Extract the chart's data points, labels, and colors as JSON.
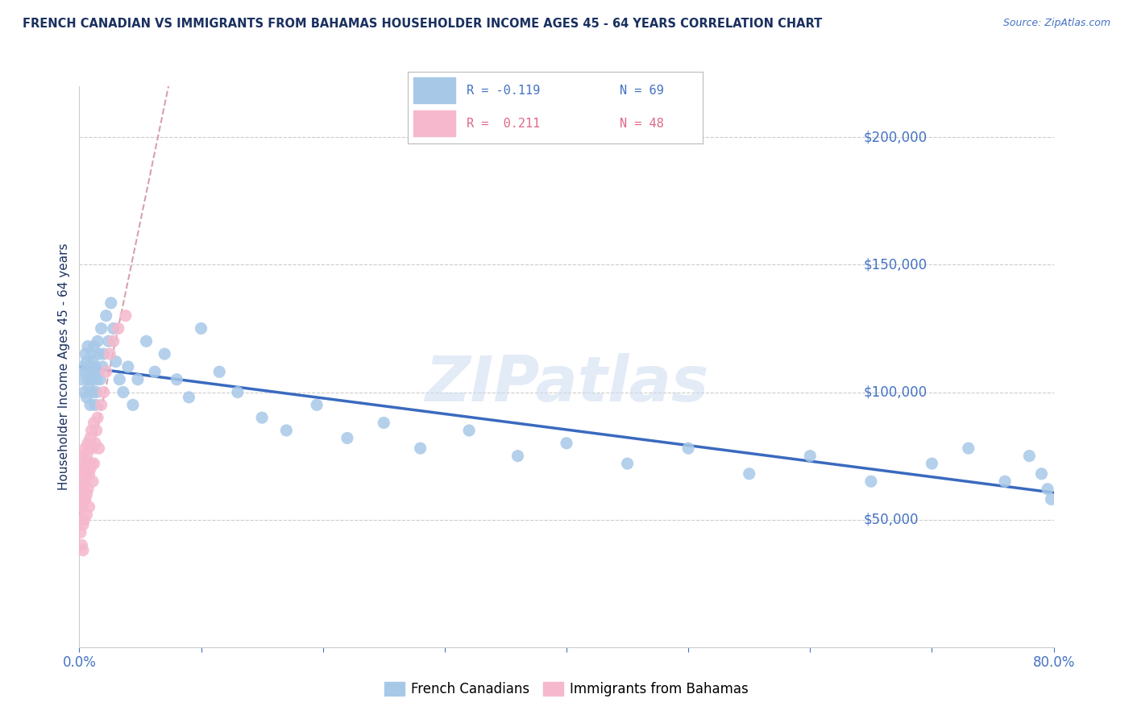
{
  "title": "FRENCH CANADIAN VS IMMIGRANTS FROM BAHAMAS HOUSEHOLDER INCOME AGES 45 - 64 YEARS CORRELATION CHART",
  "source": "Source: ZipAtlas.com",
  "ylabel": "Householder Income Ages 45 - 64 years",
  "xlim": [
    0.0,
    0.8
  ],
  "ylim": [
    0,
    220000
  ],
  "ytick_values": [
    50000,
    100000,
    150000,
    200000
  ],
  "ytick_labels": [
    "$50,000",
    "$100,000",
    "$150,000",
    "$200,000"
  ],
  "legend_r1": "R = -0.119",
  "legend_n1": "N = 69",
  "legend_r2": "R =  0.211",
  "legend_n2": "N = 48",
  "blue_dot_color": "#a8c8e8",
  "blue_line_color": "#3a6abf",
  "pink_dot_color": "#f5b8cc",
  "pink_line_color": "#e8a0b0",
  "watermark": "ZIPatlas",
  "title_color": "#1a3060",
  "axis_color": "#4472c4",
  "grid_color": "#cccccc",
  "fc_x": [
    0.002,
    0.003,
    0.004,
    0.005,
    0.005,
    0.006,
    0.006,
    0.007,
    0.007,
    0.008,
    0.008,
    0.009,
    0.009,
    0.01,
    0.01,
    0.011,
    0.011,
    0.012,
    0.012,
    0.013,
    0.013,
    0.014,
    0.014,
    0.015,
    0.015,
    0.016,
    0.017,
    0.018,
    0.019,
    0.02,
    0.022,
    0.024,
    0.026,
    0.028,
    0.03,
    0.033,
    0.036,
    0.04,
    0.044,
    0.048,
    0.055,
    0.062,
    0.07,
    0.08,
    0.09,
    0.1,
    0.115,
    0.13,
    0.15,
    0.17,
    0.195,
    0.22,
    0.25,
    0.28,
    0.32,
    0.36,
    0.4,
    0.45,
    0.5,
    0.55,
    0.6,
    0.65,
    0.7,
    0.73,
    0.76,
    0.78,
    0.79,
    0.795,
    0.798
  ],
  "fc_y": [
    105000,
    110000,
    100000,
    108000,
    115000,
    112000,
    98000,
    105000,
    118000,
    102000,
    110000,
    95000,
    108000,
    105000,
    115000,
    100000,
    112000,
    108000,
    118000,
    95000,
    110000,
    105000,
    100000,
    120000,
    108000,
    115000,
    105000,
    125000,
    110000,
    115000,
    130000,
    120000,
    135000,
    125000,
    112000,
    105000,
    100000,
    110000,
    95000,
    105000,
    120000,
    108000,
    115000,
    105000,
    98000,
    125000,
    108000,
    100000,
    90000,
    85000,
    95000,
    82000,
    88000,
    78000,
    85000,
    75000,
    80000,
    72000,
    78000,
    68000,
    75000,
    65000,
    72000,
    78000,
    65000,
    75000,
    68000,
    62000,
    58000
  ],
  "bah_x": [
    0.001,
    0.001,
    0.001,
    0.002,
    0.002,
    0.002,
    0.002,
    0.003,
    0.003,
    0.003,
    0.003,
    0.003,
    0.004,
    0.004,
    0.004,
    0.004,
    0.005,
    0.005,
    0.005,
    0.006,
    0.006,
    0.006,
    0.006,
    0.007,
    0.007,
    0.007,
    0.008,
    0.008,
    0.008,
    0.009,
    0.009,
    0.01,
    0.01,
    0.011,
    0.011,
    0.012,
    0.012,
    0.013,
    0.014,
    0.015,
    0.016,
    0.018,
    0.02,
    0.022,
    0.025,
    0.028,
    0.032,
    0.038
  ],
  "bah_y": [
    65000,
    55000,
    45000,
    70000,
    60000,
    50000,
    40000,
    75000,
    62000,
    55000,
    48000,
    38000,
    72000,
    65000,
    58000,
    50000,
    78000,
    68000,
    58000,
    75000,
    68000,
    60000,
    52000,
    80000,
    72000,
    62000,
    78000,
    68000,
    55000,
    82000,
    70000,
    85000,
    72000,
    78000,
    65000,
    88000,
    72000,
    80000,
    85000,
    90000,
    78000,
    95000,
    100000,
    108000,
    115000,
    120000,
    125000,
    130000
  ]
}
